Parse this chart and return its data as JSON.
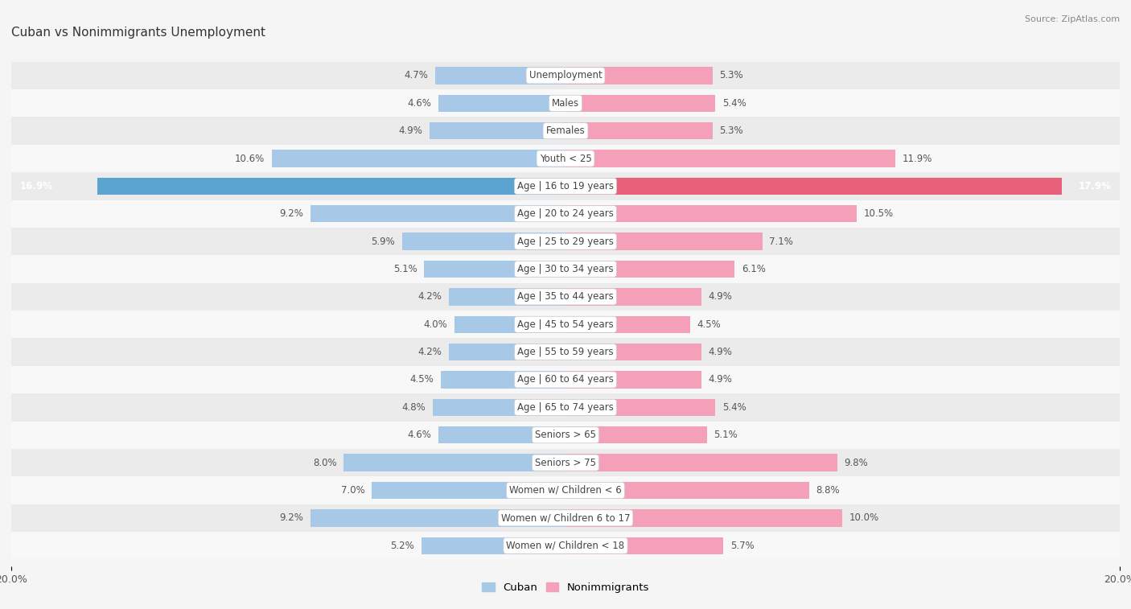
{
  "title": "Cuban vs Nonimmigrants Unemployment",
  "source": "Source: ZipAtlas.com",
  "categories": [
    "Unemployment",
    "Males",
    "Females",
    "Youth < 25",
    "Age | 16 to 19 years",
    "Age | 20 to 24 years",
    "Age | 25 to 29 years",
    "Age | 30 to 34 years",
    "Age | 35 to 44 years",
    "Age | 45 to 54 years",
    "Age | 55 to 59 years",
    "Age | 60 to 64 years",
    "Age | 65 to 74 years",
    "Seniors > 65",
    "Seniors > 75",
    "Women w/ Children < 6",
    "Women w/ Children 6 to 17",
    "Women w/ Children < 18"
  ],
  "cuban": [
    4.7,
    4.6,
    4.9,
    10.6,
    16.9,
    9.2,
    5.9,
    5.1,
    4.2,
    4.0,
    4.2,
    4.5,
    4.8,
    4.6,
    8.0,
    7.0,
    9.2,
    5.2
  ],
  "nonimmigrants": [
    5.3,
    5.4,
    5.3,
    11.9,
    17.9,
    10.5,
    7.1,
    6.1,
    4.9,
    4.5,
    4.9,
    4.9,
    5.4,
    5.1,
    9.8,
    8.8,
    10.0,
    5.7
  ],
  "xlim": 20.0,
  "cuban_color": "#a8c8e8",
  "nonimmigrant_color": "#f4a0b8",
  "cuban_color_highlight": "#5ba3d0",
  "nonimmigrant_color_highlight": "#e8607a",
  "row_bg_light": "#ebebeb",
  "row_bg_white": "#f8f8f8",
  "bar_height": 0.62,
  "label_fontsize": 8.5,
  "title_fontsize": 11,
  "category_fontsize": 8.5,
  "bg_color": "#f5f5f5"
}
